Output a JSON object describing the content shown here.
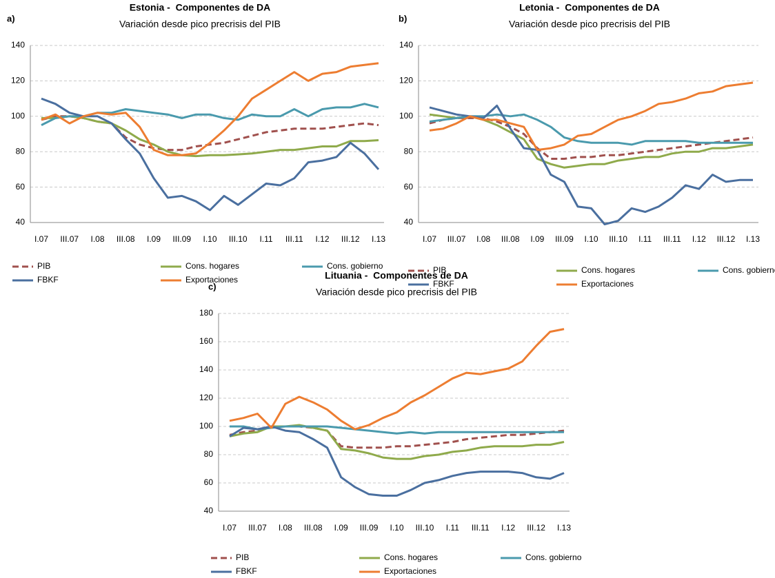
{
  "chart_data": [
    {
      "type": "line",
      "panel": "a)",
      "title": "Estonia -  Componentes de DA",
      "subtitle": "Variación desde pico precrisis del PIB",
      "categories": [
        "I.07",
        null,
        "III.07",
        null,
        "I.08",
        null,
        "III.08",
        null,
        "I.09",
        null,
        "III.09",
        null,
        "I.10",
        null,
        "III.10",
        null,
        "I.11",
        null,
        "III.11",
        null,
        "I.12",
        null,
        "III.12",
        null,
        "I.13"
      ],
      "ylim": [
        40,
        140
      ],
      "yticks": [
        40,
        60,
        80,
        100,
        120,
        140
      ],
      "grid": true,
      "legend": "bottom",
      "series": [
        {
          "name": "PIB",
          "color": "#a0504d",
          "line_style": "dashed",
          "values": [
            98,
            100,
            100,
            99,
            97,
            96,
            88,
            84,
            82,
            81,
            81,
            83,
            84,
            85,
            87,
            89,
            91,
            92,
            93,
            93,
            93,
            94,
            95,
            96,
            95
          ]
        },
        {
          "name": "Cons. hogares",
          "color": "#8faa4b",
          "line_style": "solid",
          "values": [
            99,
            99,
            100,
            99,
            97,
            96,
            92,
            87,
            84,
            80,
            78,
            77.5,
            78,
            78,
            78.5,
            79,
            80,
            81,
            81,
            82,
            83,
            83,
            86,
            86,
            86.5
          ]
        },
        {
          "name": "Cons. gobierno",
          "color": "#4a9aad",
          "line_style": "solid",
          "values": [
            95,
            99,
            100,
            100,
            102,
            102,
            104,
            103,
            102,
            101,
            99,
            101,
            101,
            99,
            98,
            101,
            100,
            100,
            104,
            100,
            104,
            105,
            105,
            107,
            105
          ]
        },
        {
          "name": "FBKF",
          "color": "#4a6f9f",
          "line_style": "solid",
          "values": [
            110,
            107,
            102,
            100,
            100,
            96,
            87,
            79,
            65,
            54,
            55,
            52,
            47,
            55,
            50,
            56,
            62,
            61,
            65,
            74,
            75,
            77,
            85,
            79,
            70
          ]
        },
        {
          "name": "Exportaciones",
          "color": "#ed7d31",
          "line_style": "solid",
          "values": [
            98,
            101,
            96,
            100,
            102,
            101,
            102,
            94,
            81,
            78,
            78,
            79,
            85,
            92,
            100,
            110,
            115,
            120,
            125,
            120,
            124,
            125,
            128,
            129,
            130
          ]
        }
      ]
    },
    {
      "type": "line",
      "panel": "b)",
      "title": "Letonia -  Componentes de DA",
      "subtitle": "Variación desde pico precrisis del PIB",
      "categories": [
        "I.07",
        null,
        "III.07",
        null,
        "I.08",
        null,
        "III.08",
        null,
        "I.09",
        null,
        "III.09",
        null,
        "I.10",
        null,
        "III.10",
        null,
        "I.11",
        null,
        "III.11",
        null,
        "I.12",
        null,
        "III.12",
        null,
        "I.13"
      ],
      "ylim": [
        40,
        140
      ],
      "yticks": [
        40,
        60,
        80,
        100,
        120,
        140
      ],
      "grid": true,
      "legend": "bottom",
      "series": [
        {
          "name": "PIB",
          "color": "#a0504d",
          "line_style": "dashed",
          "values": [
            96,
            98,
            99,
            99,
            99,
            97,
            94,
            90,
            82,
            76,
            76,
            77,
            77,
            78,
            78,
            79,
            80,
            81,
            82,
            83,
            84,
            85,
            86,
            87,
            88
          ]
        },
        {
          "name": "Cons. hogares",
          "color": "#8faa4b",
          "line_style": "solid",
          "values": [
            101,
            100,
            99,
            100,
            98,
            95,
            91,
            87,
            76,
            73,
            71,
            72,
            73,
            73,
            75,
            76,
            77,
            77,
            79,
            80,
            80,
            82,
            82,
            83,
            84
          ]
        },
        {
          "name": "Cons. gobierno",
          "color": "#4a9aad",
          "line_style": "solid",
          "values": [
            97,
            98,
            99,
            100,
            100,
            101,
            100,
            101,
            98,
            94,
            88,
            86,
            85,
            85,
            85,
            84,
            86,
            86,
            86,
            86,
            85,
            85,
            85,
            85,
            85
          ]
        },
        {
          "name": "FBKF",
          "color": "#4a6f9f",
          "line_style": "solid",
          "values": [
            105,
            103,
            101,
            100,
            99,
            106,
            93,
            82,
            81,
            67,
            63,
            49,
            48,
            39,
            41,
            48,
            46,
            49,
            54,
            61,
            59,
            67,
            63,
            64,
            64
          ]
        },
        {
          "name": "Exportaciones",
          "color": "#ed7d31",
          "line_style": "solid",
          "values": [
            92,
            93,
            96,
            100,
            98,
            98,
            96,
            94,
            81,
            82,
            84,
            89,
            90,
            94,
            98,
            100,
            103,
            107,
            108,
            110,
            113,
            114,
            117,
            118,
            119
          ]
        }
      ]
    },
    {
      "type": "line",
      "panel": "c)",
      "title": "Lituania -  Componentes de DA",
      "subtitle": "Variación desde pico precrisis del PIB",
      "categories": [
        "I.07",
        null,
        "III.07",
        null,
        "I.08",
        null,
        "III.08",
        null,
        "I.09",
        null,
        "III.09",
        null,
        "I.10",
        null,
        "III.10",
        null,
        "I.11",
        null,
        "III.11",
        null,
        "I.12",
        null,
        "III.12",
        null,
        "I.13"
      ],
      "ylim": [
        40,
        180
      ],
      "yticks": [
        40,
        60,
        80,
        100,
        120,
        140,
        160,
        180
      ],
      "grid": true,
      "legend": "bottom",
      "series": [
        {
          "name": "PIB",
          "color": "#a0504d",
          "line_style": "dashed",
          "values": [
            94,
            96,
            97,
            100,
            100,
            100,
            99,
            97,
            86,
            85,
            85,
            85,
            86,
            86,
            87,
            88,
            89,
            91,
            92,
            93,
            94,
            94,
            95,
            96,
            97
          ]
        },
        {
          "name": "Cons. hogares",
          "color": "#8faa4b",
          "line_style": "solid",
          "values": [
            93,
            95,
            96,
            100,
            100,
            101,
            99,
            97,
            84,
            83,
            81,
            78,
            77,
            77,
            79,
            80,
            82,
            83,
            85,
            86,
            86,
            86,
            87,
            87,
            89
          ]
        },
        {
          "name": "Cons. gobierno",
          "color": "#4a9aad",
          "line_style": "solid",
          "values": [
            100,
            100,
            98,
            99,
            100,
            100,
            100,
            100,
            99,
            98,
            97,
            96,
            95,
            96,
            95,
            96,
            96,
            96,
            96,
            96,
            96,
            96,
            96,
            96,
            96
          ]
        },
        {
          "name": "FBKF",
          "color": "#4a6f9f",
          "line_style": "solid",
          "values": [
            93,
            99,
            98,
            100,
            97,
            96,
            91,
            85,
            64,
            57,
            52,
            51,
            51,
            55,
            60,
            62,
            65,
            67,
            68,
            68,
            68,
            67,
            64,
            63,
            67
          ]
        },
        {
          "name": "Exportaciones",
          "color": "#ed7d31",
          "line_style": "solid",
          "values": [
            104,
            106,
            109,
            99,
            116,
            121,
            117,
            112,
            104,
            98,
            101,
            106,
            110,
            117,
            122,
            128,
            134,
            138,
            137,
            139,
            141,
            146,
            157,
            167,
            169
          ]
        }
      ]
    }
  ]
}
